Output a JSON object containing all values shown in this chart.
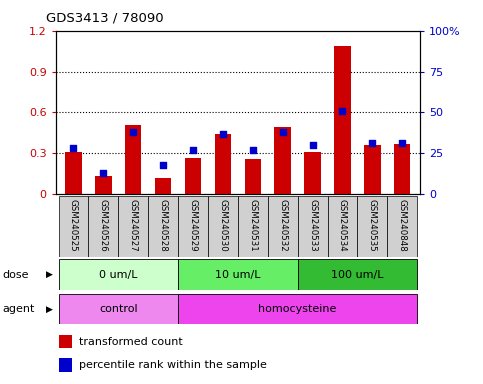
{
  "title": "GDS3413 / 78090",
  "samples": [
    "GSM240525",
    "GSM240526",
    "GSM240527",
    "GSM240528",
    "GSM240529",
    "GSM240530",
    "GSM240531",
    "GSM240532",
    "GSM240533",
    "GSM240534",
    "GSM240535",
    "GSM240848"
  ],
  "transformed_count": [
    0.305,
    0.13,
    0.51,
    0.115,
    0.265,
    0.44,
    0.255,
    0.495,
    0.305,
    1.09,
    0.36,
    0.365
  ],
  "percentile_rank": [
    28,
    13,
    38,
    18,
    27,
    37,
    27,
    38,
    30,
    51,
    31,
    31
  ],
  "bar_color": "#cc0000",
  "dot_color": "#0000cc",
  "ylim_left": [
    0,
    1.2
  ],
  "ylim_right": [
    0,
    100
  ],
  "yticks_left": [
    0,
    0.3,
    0.6,
    0.9,
    1.2
  ],
  "yticks_right": [
    0,
    25,
    50,
    75,
    100
  ],
  "ytick_labels_left": [
    "0",
    "0.3",
    "0.6",
    "0.9",
    "1.2"
  ],
  "ytick_labels_right": [
    "0",
    "25",
    "50",
    "75",
    "100%"
  ],
  "dose_groups": [
    {
      "label": "0 um/L",
      "start": 0,
      "end": 3,
      "color": "#ccffcc"
    },
    {
      "label": "10 um/L",
      "start": 4,
      "end": 7,
      "color": "#66ee66"
    },
    {
      "label": "100 um/L",
      "start": 8,
      "end": 11,
      "color": "#33bb33"
    }
  ],
  "agent_groups": [
    {
      "label": "control",
      "start": 0,
      "end": 3,
      "color": "#ee88ee"
    },
    {
      "label": "homocysteine",
      "start": 4,
      "end": 11,
      "color": "#ee44ee"
    }
  ],
  "dose_label": "dose",
  "agent_label": "agent",
  "legend_bar_label": "transformed count",
  "legend_dot_label": "percentile rank within the sample",
  "background_color": "#ffffff",
  "plot_bg_color": "#ffffff",
  "tick_area_color": "#d0d0d0"
}
